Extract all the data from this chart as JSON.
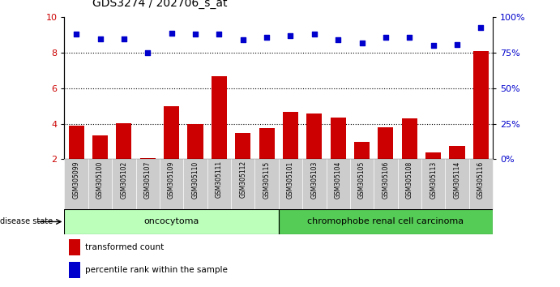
{
  "title": "GDS3274 / 202706_s_at",
  "samples": [
    "GSM305099",
    "GSM305100",
    "GSM305102",
    "GSM305107",
    "GSM305109",
    "GSM305110",
    "GSM305111",
    "GSM305112",
    "GSM305115",
    "GSM305101",
    "GSM305103",
    "GSM305104",
    "GSM305105",
    "GSM305106",
    "GSM305108",
    "GSM305113",
    "GSM305114",
    "GSM305116"
  ],
  "red_bars": [
    3.9,
    3.35,
    4.05,
    2.05,
    5.0,
    4.0,
    6.7,
    3.5,
    3.75,
    4.65,
    4.6,
    4.35,
    3.0,
    3.8,
    4.3,
    2.4,
    2.75,
    8.1
  ],
  "blue_dots": [
    88,
    85,
    85,
    75,
    89,
    88,
    88,
    84,
    86,
    87,
    88,
    84,
    82,
    86,
    86,
    80,
    81,
    93
  ],
  "ylim_left": [
    2,
    10
  ],
  "ylim_right": [
    0,
    100
  ],
  "yticks_left": [
    2,
    4,
    6,
    8,
    10
  ],
  "yticks_right": [
    0,
    25,
    50,
    75,
    100
  ],
  "ytick_labels_right": [
    "0%",
    "25%",
    "50%",
    "75%",
    "100%"
  ],
  "group1_label": "oncocytoma",
  "group2_label": "chromophobe renal cell carcinoma",
  "group1_count": 9,
  "group2_count": 9,
  "disease_state_label": "disease state",
  "legend1": "transformed count",
  "legend2": "percentile rank within the sample",
  "bar_color": "#cc0000",
  "dot_color": "#0000cc",
  "group1_color": "#bbffbb",
  "group2_color": "#55cc55",
  "tick_label_bg": "#cccccc"
}
